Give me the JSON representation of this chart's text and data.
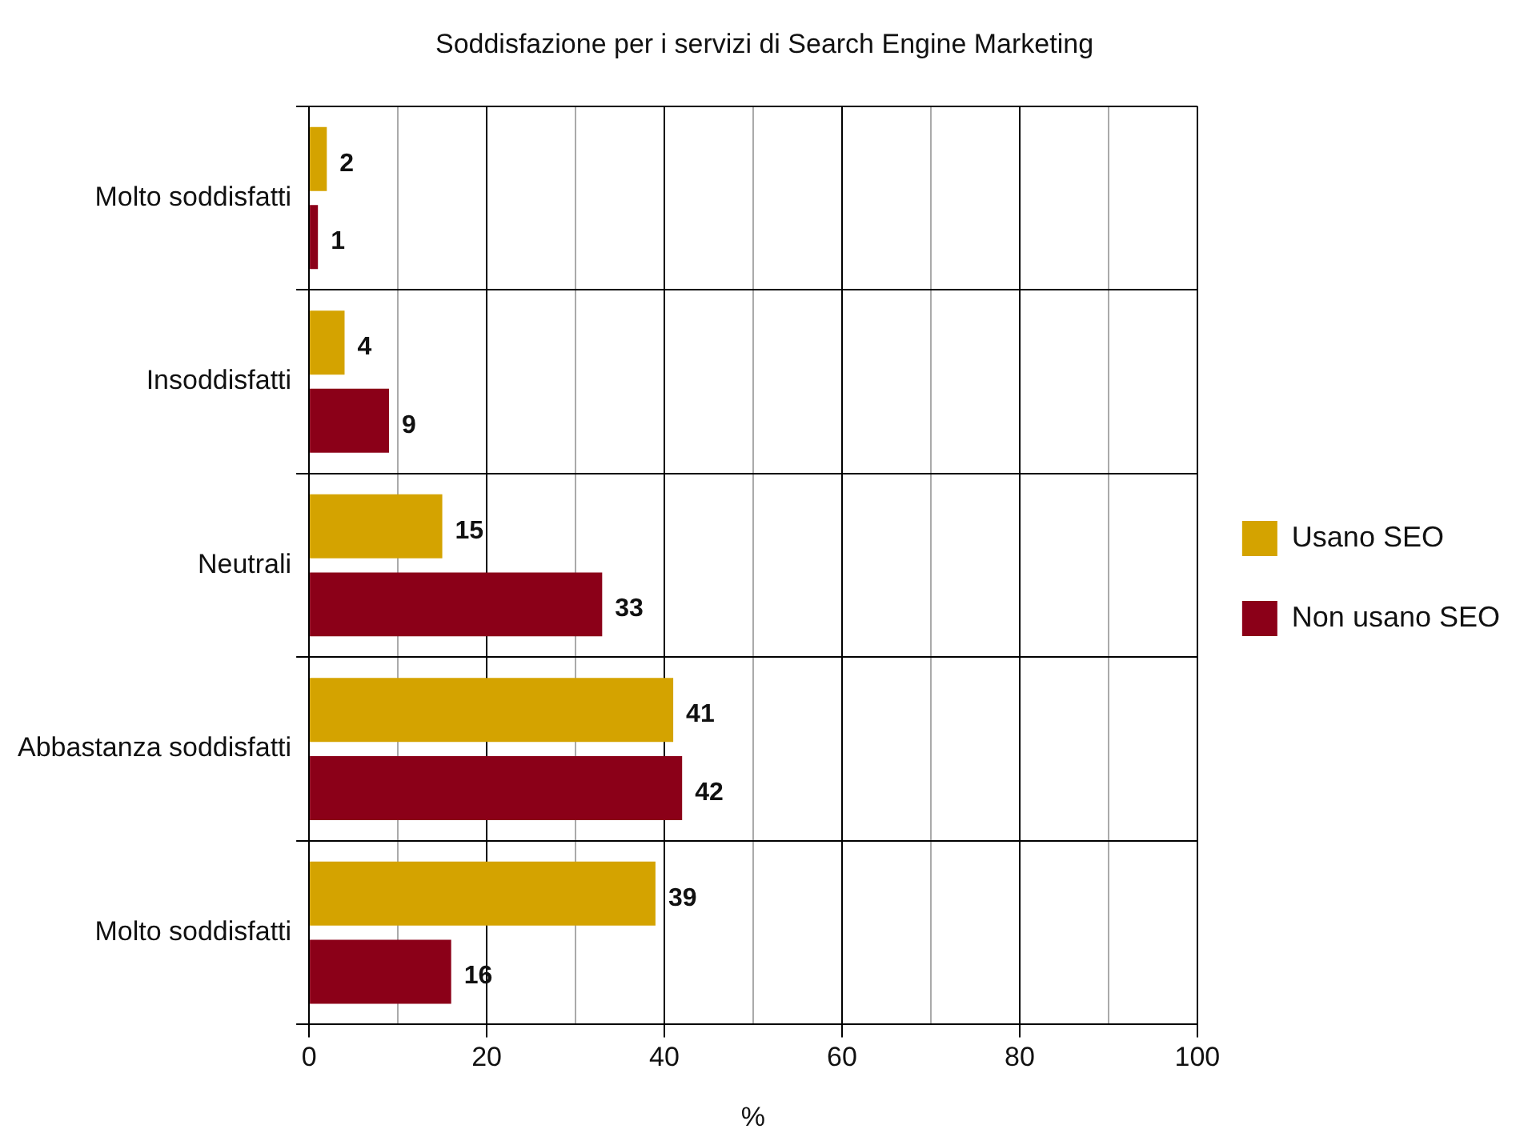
{
  "chart_data": {
    "type": "bar",
    "orientation": "horizontal",
    "title": "Soddisfazione per i servizi di Search Engine Marketing",
    "xlabel": "%",
    "categories": [
      "Molto soddisfatti",
      "Insoddisfatti",
      "Neutrali",
      "Abbastanza soddisfatti",
      "Molto soddisfatti"
    ],
    "series": [
      {
        "name": "Usano SEO",
        "color": "#d4a300",
        "values": [
          2,
          4,
          15,
          41,
          39
        ]
      },
      {
        "name": "Non usano SEO",
        "color": "#8b0018",
        "values": [
          1,
          9,
          33,
          42,
          16
        ]
      }
    ],
    "xlim": [
      0,
      100
    ],
    "xticks": [
      0,
      {
        "value": 10,
        "label": null
      },
      20,
      {
        "value": 30,
        "label": null
      },
      40,
      {
        "value": 50,
        "label": null
      },
      60,
      {
        "value": 70,
        "label": null
      },
      80,
      {
        "value": 90,
        "label": null
      },
      100
    ],
    "grid": true,
    "legend": "right",
    "data_labels": true
  }
}
